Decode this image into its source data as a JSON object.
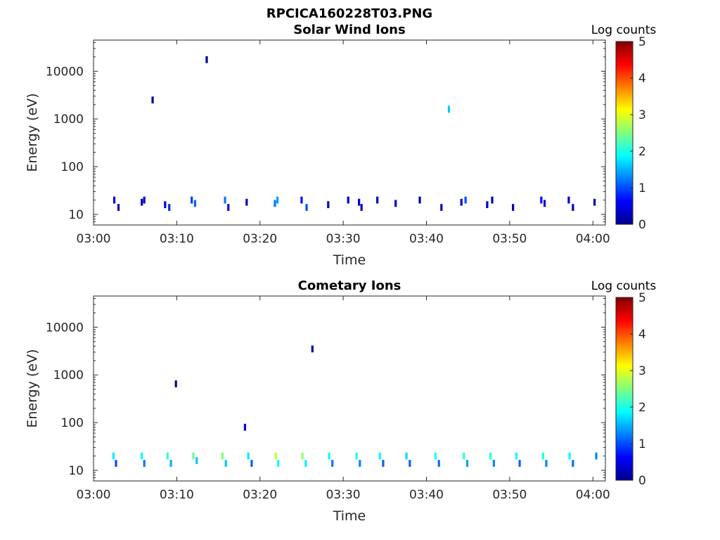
{
  "figure": {
    "title": "RPCICA160228T03.PNG"
  },
  "chart_data": [
    {
      "type": "heatmap",
      "title": "Solar Wind Ions",
      "xlabel": "Time",
      "ylabel": "Energy (eV)",
      "y_scale": "log",
      "ylim": [
        6,
        45000
      ],
      "x_range_minutes_after_0300": [
        0,
        61.5
      ],
      "x_ticks": [
        "03:00",
        "03:10",
        "03:20",
        "03:30",
        "03:40",
        "03:50",
        "04:00"
      ],
      "y_ticks": [
        "10",
        "100",
        "1000",
        "10000"
      ],
      "colorbar": {
        "label": "Log counts",
        "ticks": [
          "0",
          "1",
          "2",
          "3",
          "4",
          "5"
        ],
        "range": [
          0,
          5
        ],
        "colormap": "jet"
      },
      "grid": false,
      "cells": [
        [
          2.5,
          20,
          0.4
        ],
        [
          3.0,
          14,
          0.3
        ],
        [
          5.8,
          18,
          0.3
        ],
        [
          6.1,
          20,
          0.4
        ],
        [
          8.6,
          16,
          0.6
        ],
        [
          9.1,
          14,
          0.8
        ],
        [
          11.8,
          20,
          0.9
        ],
        [
          12.2,
          17,
          1.1
        ],
        [
          15.8,
          20,
          1.2
        ],
        [
          16.2,
          14,
          0.5
        ],
        [
          18.4,
          18,
          0.3
        ],
        [
          21.8,
          17,
          1.2
        ],
        [
          22.1,
          20,
          1.4
        ],
        [
          25.0,
          20,
          0.7
        ],
        [
          25.6,
          14,
          1.0
        ],
        [
          28.2,
          16,
          0.3
        ],
        [
          30.6,
          20,
          0.3
        ],
        [
          31.9,
          18,
          0.4
        ],
        [
          32.2,
          14,
          0.3
        ],
        [
          34.1,
          20,
          0.3
        ],
        [
          36.3,
          17,
          0.3
        ],
        [
          39.2,
          20,
          0.2
        ],
        [
          41.8,
          14,
          0.3
        ],
        [
          42.7,
          1600,
          1.6
        ],
        [
          44.2,
          18,
          0.4
        ],
        [
          44.7,
          20,
          1.0
        ],
        [
          47.3,
          16,
          0.3
        ],
        [
          47.9,
          20,
          0.3
        ],
        [
          50.4,
          14,
          0.3
        ],
        [
          53.8,
          20,
          0.6
        ],
        [
          54.2,
          17,
          0.4
        ],
        [
          57.1,
          20,
          0.4
        ],
        [
          57.6,
          14,
          0.3
        ],
        [
          60.2,
          18,
          0.2
        ],
        [
          13.6,
          17500,
          0.1
        ],
        [
          7.1,
          2500,
          0.1
        ]
      ]
    },
    {
      "type": "heatmap",
      "title": "Cometary Ions",
      "xlabel": "Time",
      "ylabel": "Energy (eV)",
      "y_scale": "log",
      "ylim": [
        6,
        45000
      ],
      "x_range_minutes_after_0300": [
        0,
        61.5
      ],
      "x_ticks": [
        "03:00",
        "03:10",
        "03:20",
        "03:30",
        "03:40",
        "03:50",
        "04:00"
      ],
      "y_ticks": [
        "10",
        "100",
        "1000",
        "10000"
      ],
      "colorbar": {
        "label": "Log counts",
        "ticks": [
          "0",
          "1",
          "2",
          "3",
          "4",
          "5"
        ],
        "range": [
          0,
          5
        ],
        "colormap": "jet"
      },
      "grid": false,
      "cells": [
        [
          2.4,
          20,
          1.8
        ],
        [
          2.7,
          14,
          1.0
        ],
        [
          5.8,
          20,
          1.9
        ],
        [
          6.1,
          14,
          1.2
        ],
        [
          8.9,
          20,
          2.1
        ],
        [
          9.3,
          14,
          1.5
        ],
        [
          12.0,
          20,
          2.4
        ],
        [
          12.4,
          16,
          1.6
        ],
        [
          15.5,
          20,
          2.5
        ],
        [
          15.9,
          14,
          1.6
        ],
        [
          18.6,
          20,
          1.8
        ],
        [
          19.0,
          14,
          1.1
        ],
        [
          21.9,
          20,
          2.8
        ],
        [
          22.2,
          14,
          1.9
        ],
        [
          25.1,
          20,
          2.6
        ],
        [
          25.5,
          14,
          1.8
        ],
        [
          28.3,
          20,
          1.9
        ],
        [
          28.7,
          14,
          1.2
        ],
        [
          31.6,
          20,
          2.0
        ],
        [
          32.0,
          14,
          1.3
        ],
        [
          34.4,
          20,
          1.9
        ],
        [
          34.8,
          14,
          1.1
        ],
        [
          37.6,
          20,
          1.7
        ],
        [
          38.0,
          14,
          1.1
        ],
        [
          41.1,
          20,
          2.0
        ],
        [
          41.5,
          14,
          1.2
        ],
        [
          44.5,
          20,
          2.1
        ],
        [
          44.9,
          14,
          1.4
        ],
        [
          47.7,
          20,
          2.0
        ],
        [
          48.1,
          14,
          1.3
        ],
        [
          50.8,
          20,
          1.9
        ],
        [
          51.2,
          14,
          1.1
        ],
        [
          54.0,
          20,
          2.0
        ],
        [
          54.4,
          14,
          1.3
        ],
        [
          57.2,
          20,
          1.9
        ],
        [
          57.6,
          14,
          1.2
        ],
        [
          60.4,
          20,
          1.3
        ],
        [
          18.2,
          80,
          0.6
        ],
        [
          9.9,
          650,
          0.2
        ],
        [
          26.3,
          3500,
          0.2
        ]
      ]
    }
  ]
}
